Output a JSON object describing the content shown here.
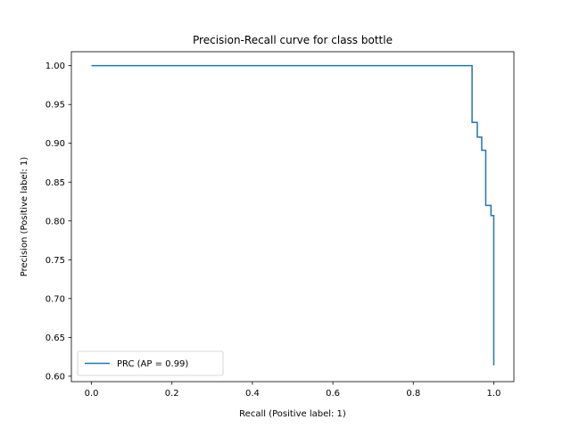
{
  "chart_data": {
    "type": "line",
    "title": "Precision-Recall curve for class bottle",
    "xlabel": "Recall (Positive label: 1)",
    "ylabel": "Precision (Positive label: 1)",
    "xlim": [
      -0.05,
      1.05
    ],
    "ylim": [
      0.593,
      1.018
    ],
    "xticks": [
      0.0,
      0.2,
      0.4,
      0.6,
      0.8,
      1.0
    ],
    "xtick_labels": [
      "0.0",
      "0.2",
      "0.4",
      "0.6",
      "0.8",
      "1.0"
    ],
    "yticks": [
      0.6,
      0.65,
      0.7,
      0.75,
      0.8,
      0.85,
      0.9,
      0.95,
      1.0
    ],
    "ytick_labels": [
      "0.60",
      "0.65",
      "0.70",
      "0.75",
      "0.80",
      "0.85",
      "0.90",
      "0.95",
      "1.00"
    ],
    "grid": false,
    "legend_position": "lower-left",
    "series": [
      {
        "name": "PRC (AP = 0.99)",
        "color": "#1f77b4",
        "drawstyle": "steps-post",
        "x": [
          0.0,
          0.946,
          0.946,
          0.959,
          0.959,
          0.97,
          0.97,
          0.98,
          0.98,
          0.993,
          0.993,
          1.0,
          1.0
        ],
        "y": [
          1.0,
          1.0,
          0.927,
          0.927,
          0.908,
          0.908,
          0.891,
          0.891,
          0.82,
          0.82,
          0.807,
          0.807,
          0.614
        ]
      }
    ]
  }
}
